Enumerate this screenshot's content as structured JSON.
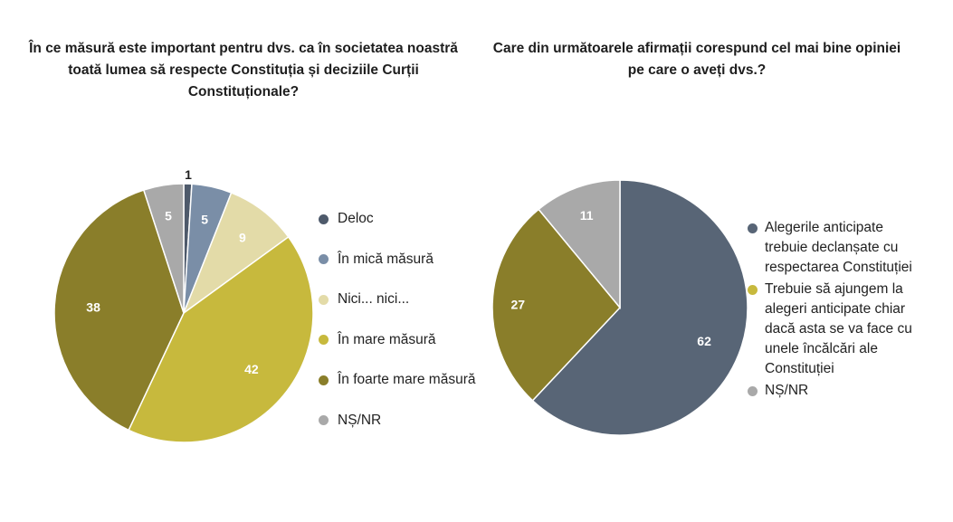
{
  "chart_data": [
    {
      "type": "pie",
      "title": "În ce măsură este important pentru dvs. ca în societatea noastră toată lumea să respecte Constituția și deciziile Curții Constituționale?",
      "categories": [
        "Deloc",
        "În mică măsură",
        "Nici... nici...",
        "În mare măsură",
        "În foarte mare măsură",
        "NȘ/NR"
      ],
      "values": [
        1,
        5,
        9,
        42,
        38,
        5
      ],
      "colors": [
        "#4e5a6b",
        "#7a8ea7",
        "#e3dba8",
        "#c7b93d",
        "#8a7e2a",
        "#a9a9a9"
      ],
      "label_colors": [
        "#1e1e1e",
        "#ffffff",
        "#ffffff",
        "#ffffff",
        "#ffffff",
        "#ffffff"
      ],
      "legend_position": "right"
    },
    {
      "type": "pie",
      "title": "Care din următoarele afirmații corespund cel mai bine opiniei pe care o aveți dvs.?",
      "categories": [
        "Alegerile anticipate trebuie declanșate cu respectarea Constituției",
        "Trebuie să ajungem la alegeri anticipate chiar dacă asta se va face cu unele încălcări ale Constituției",
        "NȘ/NR"
      ],
      "values": [
        62,
        27,
        11
      ],
      "colors": [
        "#586576",
        "#8a7e2a",
        "#a9a9a9"
      ],
      "label_colors": [
        "#ffffff",
        "#ffffff",
        "#ffffff"
      ],
      "legend_swatch_colors": [
        "#586576",
        "#c7b93d",
        "#a9a9a9"
      ],
      "legend_lines": [
        [
          "Alegerile anticipate",
          "trebuie declanșate cu",
          "respectarea Constituției"
        ],
        [
          "Trebuie să ajungem la",
          "alegeri anticipate chiar",
          "dacă asta se va face cu",
          "unele încălcări ale",
          "Constituției"
        ],
        [
          "NȘ/NR"
        ]
      ],
      "legend_position": "right"
    }
  ]
}
